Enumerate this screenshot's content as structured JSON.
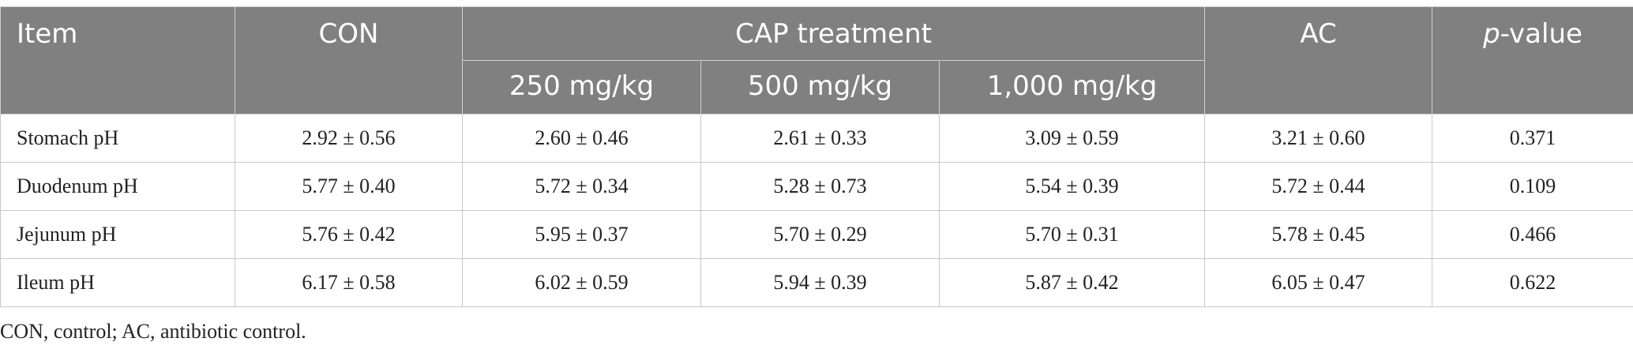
{
  "header": {
    "item": "Item",
    "con": "CON",
    "cap_treatment": "CAP treatment",
    "ac": "AC",
    "pvalue_italic": "p",
    "pvalue_rest": "-value",
    "doses": [
      "250 mg/kg",
      "500 mg/kg",
      "1,000 mg/kg"
    ]
  },
  "rows": [
    {
      "label": "Stomach pH",
      "con": "2.92 ± 0.56",
      "d250": "2.60 ± 0.46",
      "d500": "2.61 ± 0.33",
      "d1000": "3.09 ± 0.59",
      "ac": "3.21 ± 0.60",
      "p": "0.371"
    },
    {
      "label": "Duodenum pH",
      "con": "5.77 ± 0.40",
      "d250": "5.72 ± 0.34",
      "d500": "5.28 ± 0.73",
      "d1000": "5.54 ± 0.39",
      "ac": "5.72 ± 0.44",
      "p": "0.109"
    },
    {
      "label": "Jejunum pH",
      "con": "5.76 ± 0.42",
      "d250": "5.95 ± 0.37",
      "d500": "5.70 ± 0.29",
      "d1000": "5.70 ± 0.31",
      "ac": "5.78 ± 0.45",
      "p": "0.466"
    },
    {
      "label": "Ileum pH",
      "con": "6.17 ± 0.58",
      "d250": "6.02 ± 0.59",
      "d500": "5.94 ± 0.39",
      "d1000": "5.87 ± 0.42",
      "ac": "6.05 ± 0.47",
      "p": "0.622"
    }
  ],
  "footnote": "CON, control; AC, antibiotic control."
}
